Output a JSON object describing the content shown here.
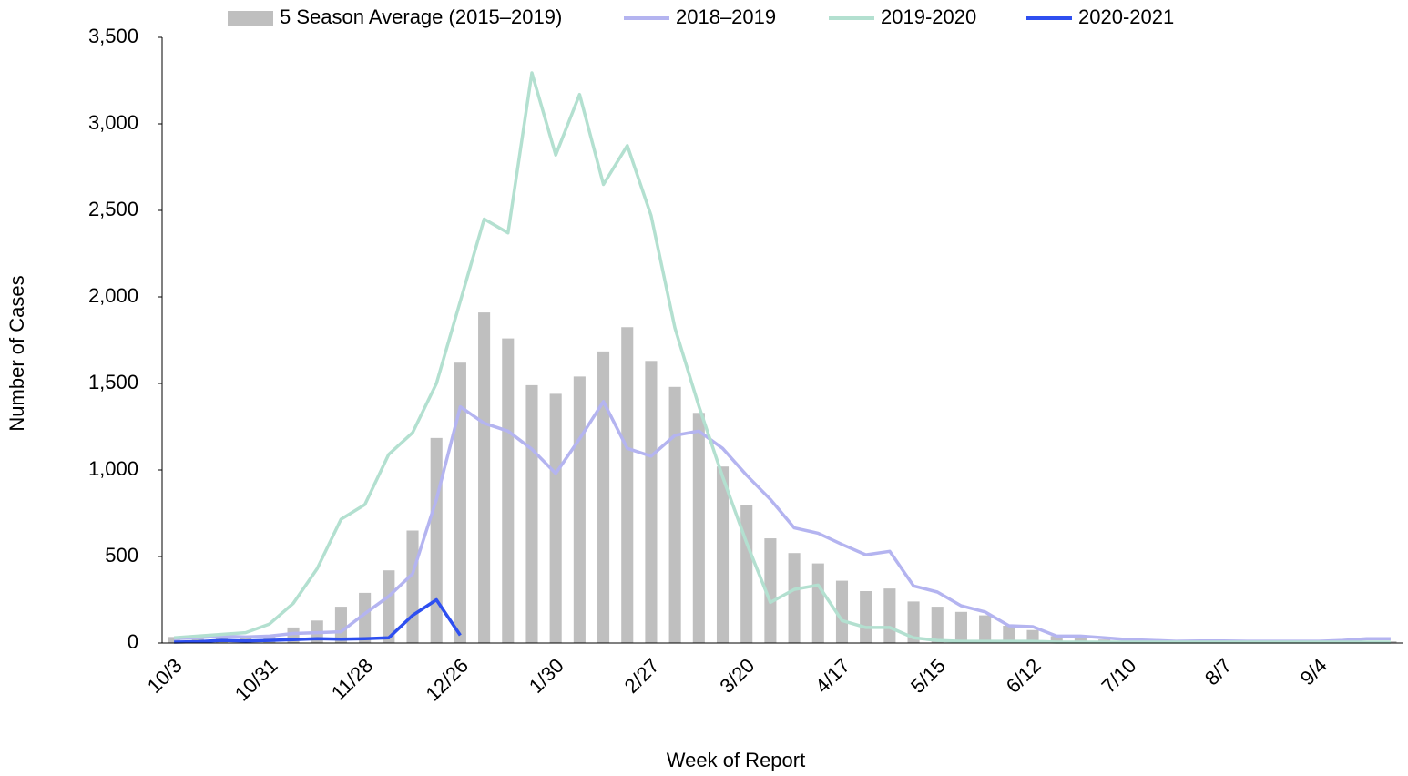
{
  "chart_data": {
    "type": "combo",
    "xlabel": "Week of Report",
    "ylabel": "Number of Cases",
    "categories": [
      "10/3",
      null,
      null,
      null,
      "10/31",
      null,
      null,
      null,
      "11/28",
      null,
      null,
      null,
      "12/26",
      null,
      null,
      null,
      "1/30",
      null,
      null,
      null,
      "2/27",
      null,
      null,
      null,
      "3/20",
      null,
      null,
      null,
      "4/17",
      null,
      null,
      null,
      "5/15",
      null,
      null,
      null,
      "6/12",
      null,
      null,
      null,
      "7/10",
      null,
      null,
      null,
      "8/7",
      null,
      null,
      null,
      "9/4",
      null,
      null,
      null
    ],
    "ylim": [
      0,
      3500
    ],
    "yticks": [
      0,
      500,
      {
        "value": 1000,
        "label": "1,000"
      },
      {
        "value": 1500,
        "label": "1,500"
      },
      {
        "value": 2000,
        "label": "2,000"
      },
      {
        "value": 2500,
        "label": "2,500"
      },
      {
        "value": 3000,
        "label": "3,000"
      },
      {
        "value": 3500,
        "label": "3,500"
      }
    ],
    "grid": false,
    "legend": "top",
    "series": [
      {
        "name": "5 Season Average (2015–2019)",
        "type": "bar",
        "color": "#bfbfbf",
        "values": [
          35,
          35,
          45,
          40,
          45,
          90,
          130,
          210,
          290,
          420,
          650,
          1185,
          1620,
          1910,
          1760,
          1490,
          1440,
          1540,
          1685,
          1825,
          1630,
          1480,
          1330,
          1020,
          800,
          605,
          520,
          460,
          360,
          300,
          315,
          240,
          210,
          180,
          160,
          100,
          75,
          40,
          35,
          20,
          15,
          10,
          10,
          10,
          10,
          8,
          8,
          8,
          8,
          8,
          10,
          10
        ]
      },
      {
        "name": "2018–2019",
        "type": "line",
        "color": "#b4b4f0",
        "values": [
          25,
          30,
          40,
          35,
          40,
          55,
          60,
          65,
          170,
          270,
          400,
          830,
          1365,
          1270,
          1225,
          1120,
          980,
          1180,
          1395,
          1125,
          1080,
          1200,
          1225,
          1125,
          970,
          830,
          665,
          635,
          570,
          510,
          530,
          330,
          295,
          215,
          180,
          100,
          95,
          40,
          40,
          30,
          20,
          15,
          10,
          12,
          12,
          10,
          10,
          10,
          10,
          15,
          25,
          25
        ]
      },
      {
        "name": "2019-2020",
        "type": "line",
        "color": "#b3e0d0",
        "values": [
          30,
          40,
          50,
          60,
          110,
          230,
          430,
          715,
          800,
          1090,
          1215,
          1500,
          1975,
          2450,
          2370,
          3295,
          2820,
          3170,
          2650,
          2875,
          2470,
          1820,
          1370,
          960,
          580,
          235,
          310,
          335,
          130,
          90,
          90,
          30,
          15,
          10,
          10,
          10,
          10,
          5,
          5,
          5,
          5,
          5,
          5,
          5,
          5,
          5,
          5,
          5,
          5,
          5,
          5,
          5
        ]
      },
      {
        "name": "2020-2021",
        "type": "line",
        "color": "#2e4ff0",
        "values": [
          5,
          8,
          15,
          12,
          15,
          20,
          25,
          22,
          25,
          30,
          160,
          250,
          45,
          null,
          null,
          null,
          null,
          null,
          null,
          null,
          null,
          null,
          null,
          null,
          null,
          null,
          null,
          null,
          null,
          null,
          null,
          null,
          null,
          null,
          null,
          null,
          null,
          null,
          null,
          null,
          null,
          null,
          null,
          null,
          null,
          null,
          null,
          null,
          null,
          null,
          null,
          null
        ]
      }
    ]
  }
}
